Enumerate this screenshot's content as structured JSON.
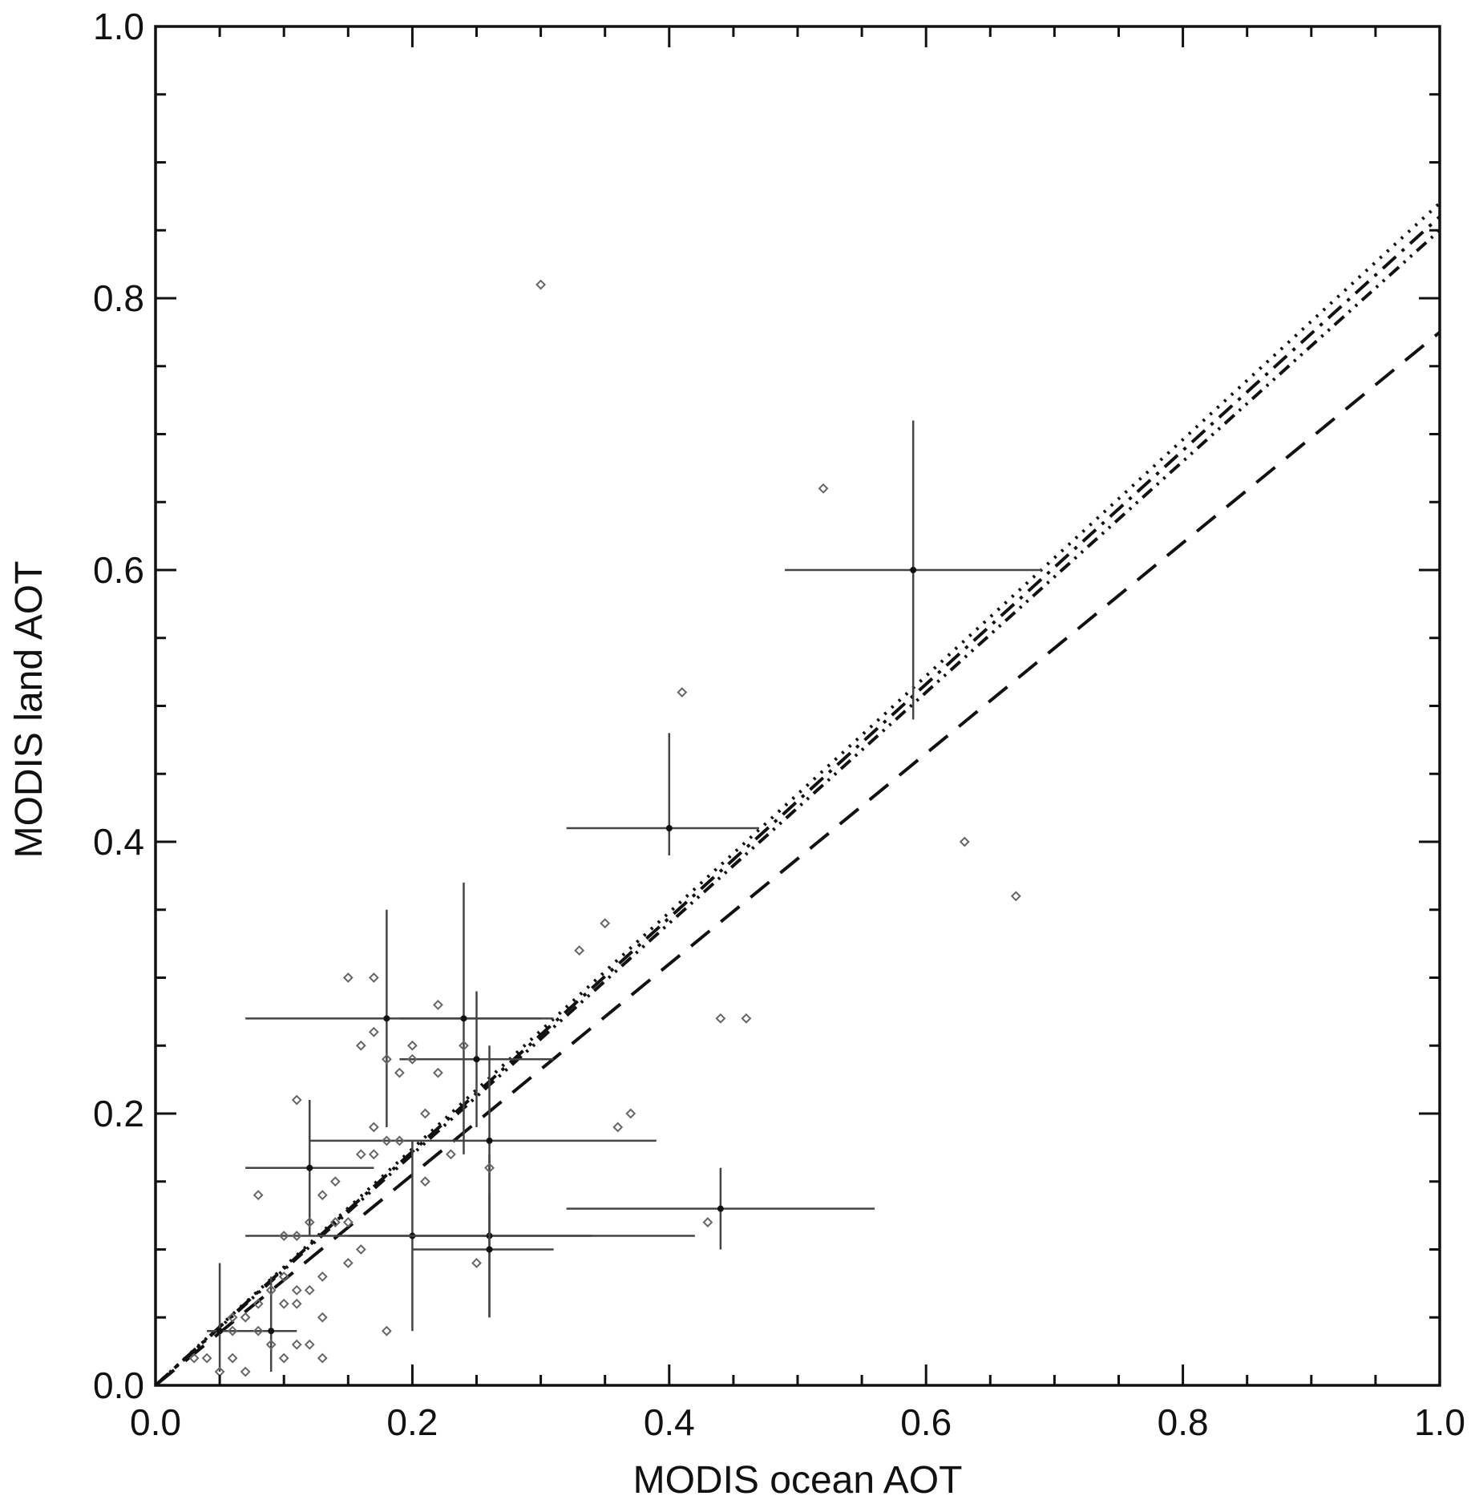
{
  "chart_data": {
    "type": "scatter",
    "title": "",
    "xlabel": "MODIS ocean AOT",
    "ylabel": "MODIS land AOT",
    "xlim": [
      0.0,
      1.0
    ],
    "ylim": [
      0.0,
      1.0
    ],
    "xticks": [
      "0.0",
      "0.2",
      "0.4",
      "0.6",
      "0.8",
      "1.0"
    ],
    "yticks": [
      "0.0",
      "0.2",
      "0.4",
      "0.6",
      "0.8",
      "1.0"
    ],
    "grid": false,
    "legend": "none",
    "points": [
      [
        0.3,
        0.81
      ],
      [
        0.52,
        0.66
      ],
      [
        0.41,
        0.51
      ],
      [
        0.63,
        0.4
      ],
      [
        0.67,
        0.36
      ],
      [
        0.35,
        0.34
      ],
      [
        0.33,
        0.32
      ],
      [
        0.44,
        0.27
      ],
      [
        0.46,
        0.27
      ],
      [
        0.37,
        0.2
      ],
      [
        0.36,
        0.19
      ],
      [
        0.15,
        0.3
      ],
      [
        0.17,
        0.3
      ],
      [
        0.22,
        0.28
      ],
      [
        0.17,
        0.26
      ],
      [
        0.16,
        0.25
      ],
      [
        0.24,
        0.25
      ],
      [
        0.2,
        0.25
      ],
      [
        0.2,
        0.24
      ],
      [
        0.18,
        0.24
      ],
      [
        0.22,
        0.23
      ],
      [
        0.19,
        0.23
      ],
      [
        0.11,
        0.21
      ],
      [
        0.21,
        0.2
      ],
      [
        0.17,
        0.19
      ],
      [
        0.19,
        0.18
      ],
      [
        0.18,
        0.18
      ],
      [
        0.17,
        0.17
      ],
      [
        0.16,
        0.17
      ],
      [
        0.23,
        0.17
      ],
      [
        0.26,
        0.16
      ],
      [
        0.21,
        0.15
      ],
      [
        0.14,
        0.15
      ],
      [
        0.08,
        0.14
      ],
      [
        0.13,
        0.14
      ],
      [
        0.12,
        0.12
      ],
      [
        0.1,
        0.11
      ],
      [
        0.11,
        0.11
      ],
      [
        0.14,
        0.12
      ],
      [
        0.15,
        0.12
      ],
      [
        0.16,
        0.1
      ],
      [
        0.15,
        0.09
      ],
      [
        0.13,
        0.08
      ],
      [
        0.25,
        0.09
      ],
      [
        0.43,
        0.12
      ],
      [
        0.1,
        0.08
      ],
      [
        0.11,
        0.07
      ],
      [
        0.12,
        0.07
      ],
      [
        0.09,
        0.07
      ],
      [
        0.08,
        0.06
      ],
      [
        0.1,
        0.06
      ],
      [
        0.13,
        0.05
      ],
      [
        0.07,
        0.05
      ],
      [
        0.06,
        0.04
      ],
      [
        0.08,
        0.04
      ],
      [
        0.09,
        0.03
      ],
      [
        0.11,
        0.03
      ],
      [
        0.12,
        0.03
      ],
      [
        0.1,
        0.02
      ],
      [
        0.13,
        0.02
      ],
      [
        0.05,
        0.01
      ],
      [
        0.06,
        0.02
      ],
      [
        0.07,
        0.01
      ],
      [
        0.03,
        0.02
      ],
      [
        0.04,
        0.02
      ],
      [
        0.18,
        0.04
      ],
      [
        0.06,
        0.05
      ],
      [
        0.11,
        0.06
      ]
    ],
    "error_bars": [
      {
        "x": 0.59,
        "y": 0.6,
        "xlo": 0.49,
        "xhi": 0.69,
        "ylo": 0.49,
        "yhi": 0.71
      },
      {
        "x": 0.4,
        "y": 0.41,
        "xlo": 0.32,
        "xhi": 0.47,
        "ylo": 0.39,
        "yhi": 0.48
      },
      {
        "x": 0.44,
        "y": 0.13,
        "xlo": 0.32,
        "xhi": 0.56,
        "ylo": 0.1,
        "yhi": 0.16
      },
      {
        "x": 0.18,
        "y": 0.27,
        "xlo": 0.07,
        "xhi": 0.3,
        "ylo": 0.19,
        "yhi": 0.35
      },
      {
        "x": 0.24,
        "y": 0.27,
        "xlo": 0.19,
        "xhi": 0.31,
        "ylo": 0.17,
        "yhi": 0.37
      },
      {
        "x": 0.25,
        "y": 0.24,
        "xlo": 0.19,
        "xhi": 0.31,
        "ylo": 0.19,
        "yhi": 0.29
      },
      {
        "x": 0.26,
        "y": 0.18,
        "xlo": 0.12,
        "xhi": 0.39,
        "ylo": 0.11,
        "yhi": 0.25
      },
      {
        "x": 0.12,
        "y": 0.16,
        "xlo": 0.07,
        "xhi": 0.17,
        "ylo": 0.11,
        "yhi": 0.21
      },
      {
        "x": 0.2,
        "y": 0.11,
        "xlo": 0.07,
        "xhi": 0.34,
        "ylo": 0.04,
        "yhi": 0.18
      },
      {
        "x": 0.26,
        "y": 0.11,
        "xlo": 0.15,
        "xhi": 0.42,
        "ylo": 0.05,
        "yhi": 0.17
      },
      {
        "x": 0.26,
        "y": 0.1,
        "xlo": 0.2,
        "xhi": 0.31,
        "ylo": 0.05,
        "yhi": 0.14
      },
      {
        "x": 0.05,
        "y": 0.04,
        "xlo": 0.04,
        "xhi": 0.07,
        "ylo": 0.01,
        "yhi": 0.09
      },
      {
        "x": 0.09,
        "y": 0.04,
        "xlo": 0.06,
        "xhi": 0.11,
        "ylo": 0.01,
        "yhi": 0.08
      }
    ],
    "lines": [
      {
        "style": "dashed",
        "x": [
          0.0,
          1.0
        ],
        "y": [
          0.0,
          0.775
        ]
      },
      {
        "style": "dash-dot",
        "x": [
          0.0,
          1.0
        ],
        "y": [
          0.0,
          0.86
        ]
      },
      {
        "style": "dotted",
        "x": [
          0.0,
          1.0
        ],
        "y": [
          0.0,
          0.87
        ]
      },
      {
        "style": "dash-dot-dot",
        "x": [
          0.0,
          1.0
        ],
        "y": [
          0.0,
          0.85
        ]
      }
    ]
  }
}
